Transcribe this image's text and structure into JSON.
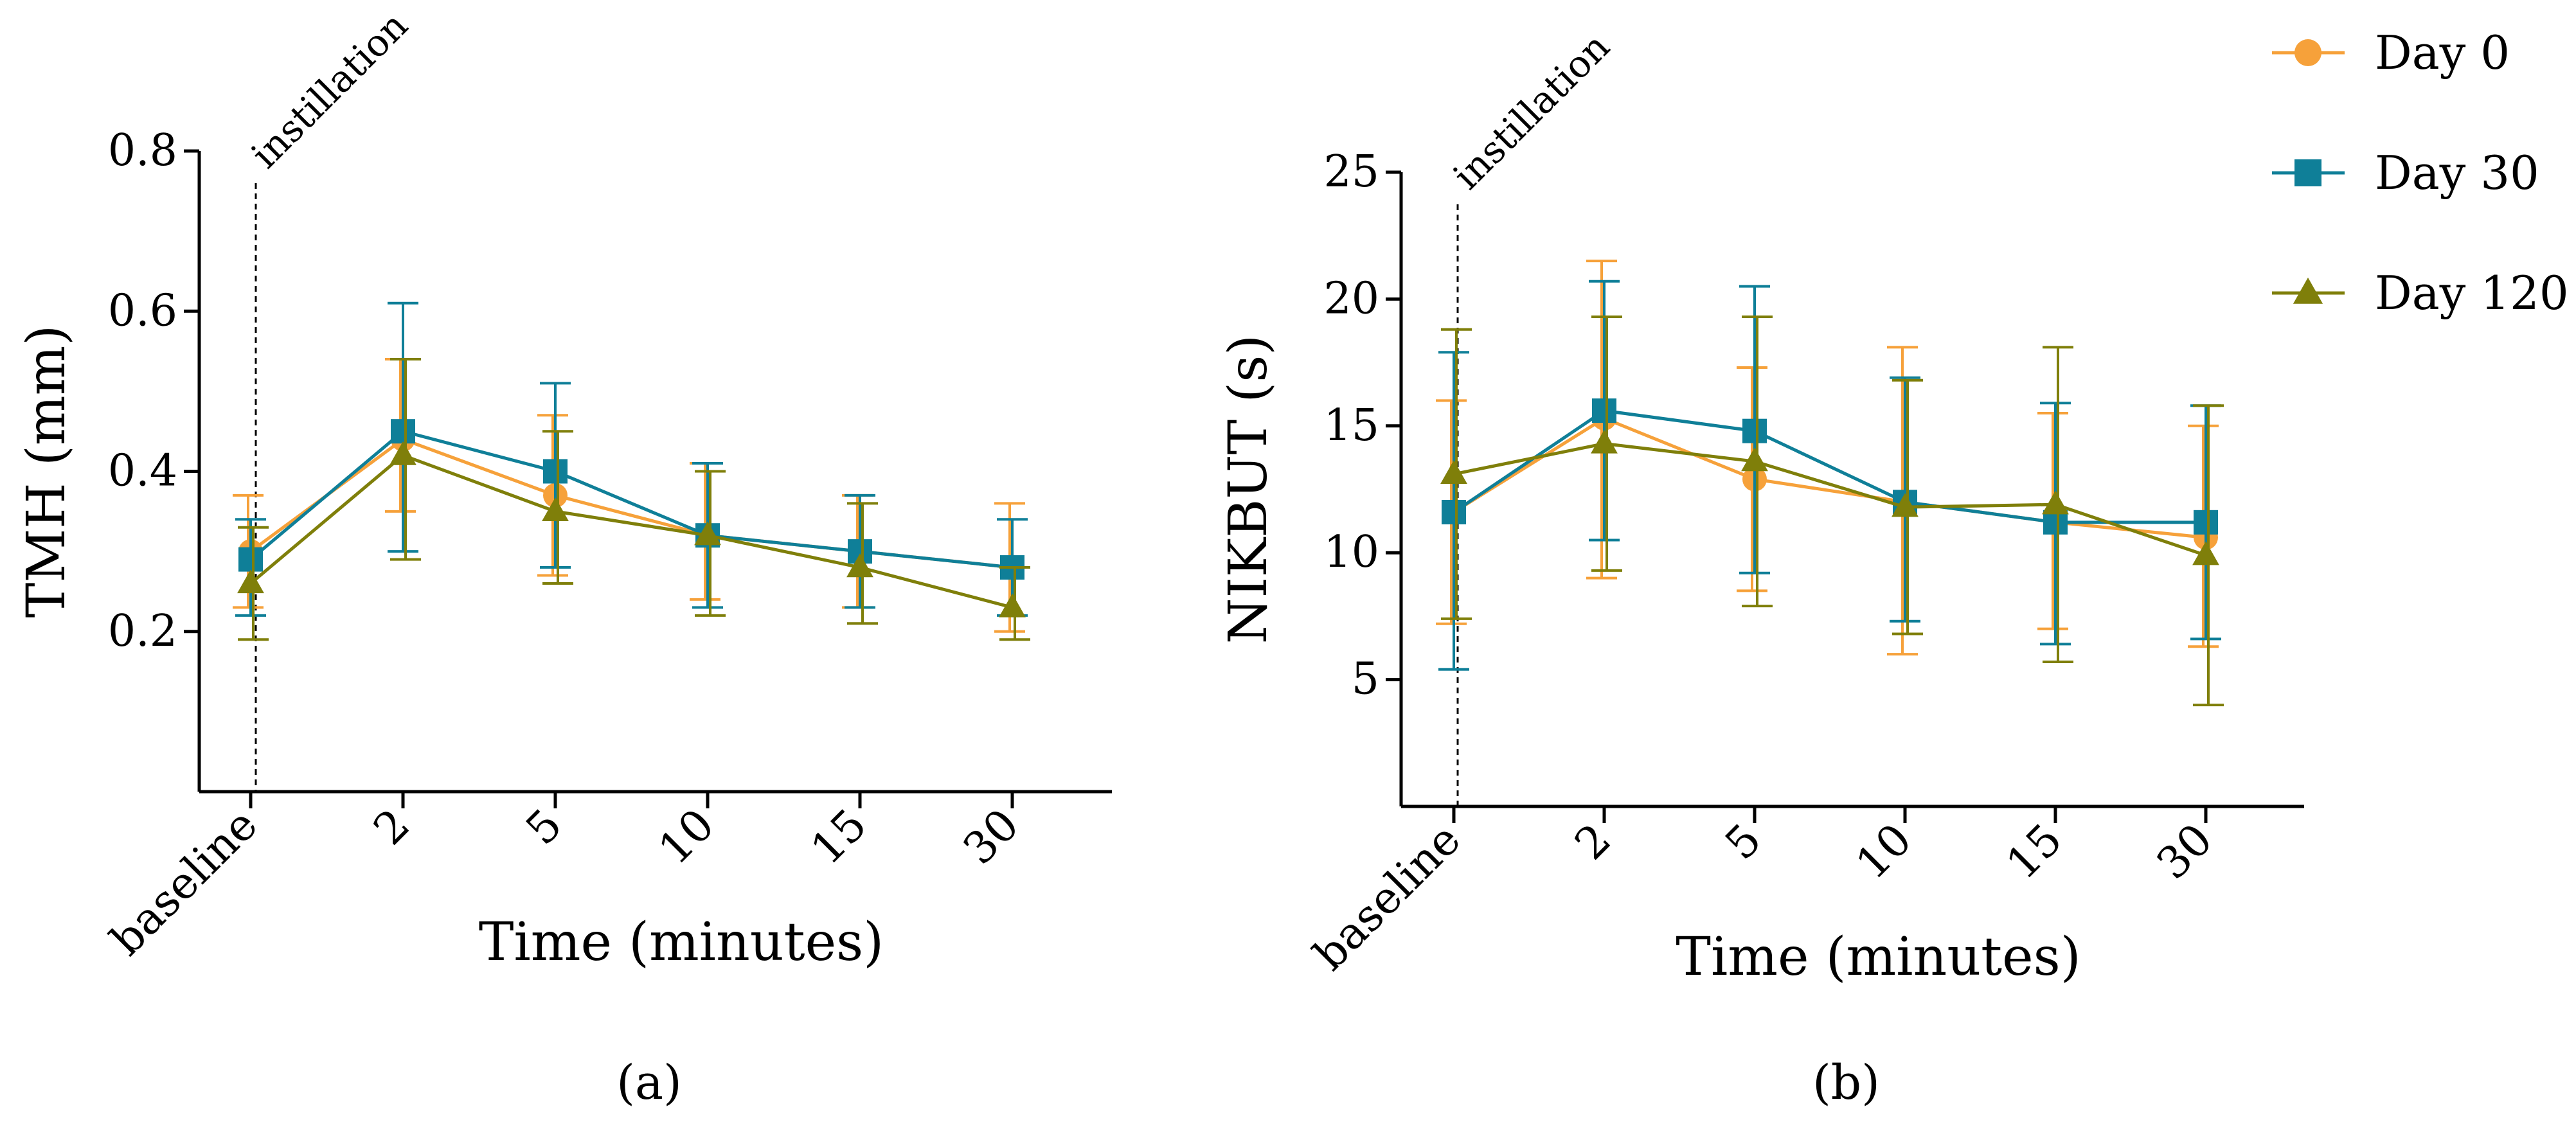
{
  "colors": {
    "day0": "#F6A13A",
    "day30": "#0F7F98",
    "day120": "#7F7F0A",
    "axis": "#000000"
  },
  "legend": {
    "placement": "right",
    "entries": [
      {
        "label": "Day 0",
        "marker": "circle",
        "color": "#F6A13A"
      },
      {
        "label": "Day 30",
        "marker": "square",
        "color": "#0F7F98"
      },
      {
        "label": "Day 120",
        "marker": "triangle",
        "color": "#7F7F0A"
      }
    ]
  },
  "chart_data": [
    {
      "type": "line",
      "panel_label": "(a)",
      "panel_letter": "a",
      "xlabel": "Time (minutes)",
      "ylabel": "TMH (mm)",
      "categories": [
        "baseline",
        "2",
        "5",
        "10",
        "15",
        "30"
      ],
      "ylim": [
        0,
        0.8
      ],
      "yticks": [
        0.2,
        0.4,
        0.6,
        0.8
      ],
      "ytick_labels": [
        "0.2",
        "0.4",
        "0.6",
        "0.8"
      ],
      "grid": false,
      "annotation": {
        "text": "instillation",
        "style": "dashed vertical line",
        "at_category": "baseline"
      },
      "series": [
        {
          "name": "Day 0",
          "marker": "circle",
          "color": "#F6A13A",
          "values": [
            0.3,
            0.44,
            0.37,
            0.32,
            0.3,
            0.28
          ],
          "err_low": [
            0.23,
            0.35,
            0.27,
            0.24,
            0.23,
            0.2
          ],
          "err_high": [
            0.37,
            0.54,
            0.47,
            0.41,
            0.37,
            0.36
          ]
        },
        {
          "name": "Day 30",
          "marker": "square",
          "color": "#0F7F98",
          "values": [
            0.29,
            0.45,
            0.4,
            0.32,
            0.3,
            0.28
          ],
          "err_low": [
            0.22,
            0.3,
            0.28,
            0.23,
            0.23,
            0.22
          ],
          "err_high": [
            0.34,
            0.61,
            0.51,
            0.41,
            0.37,
            0.34
          ]
        },
        {
          "name": "Day 120",
          "marker": "triangle",
          "color": "#7F7F0A",
          "values": [
            0.26,
            0.42,
            0.35,
            0.32,
            0.28,
            0.23
          ],
          "err_low": [
            0.19,
            0.29,
            0.26,
            0.22,
            0.21,
            0.19
          ],
          "err_high": [
            0.33,
            0.54,
            0.45,
            0.4,
            0.36,
            0.28
          ]
        }
      ]
    },
    {
      "type": "line",
      "panel_label": "(b)",
      "panel_letter": "b",
      "xlabel": "Time (minutes)",
      "ylabel": "NIKBUT (s)",
      "categories": [
        "baseline",
        "2",
        "5",
        "10",
        "15",
        "30"
      ],
      "ylim": [
        0,
        25
      ],
      "yticks": [
        5,
        10,
        15,
        20,
        25
      ],
      "ytick_labels": [
        "5",
        "10",
        "15",
        "20",
        "25"
      ],
      "grid": false,
      "annotation": {
        "text": "instillation",
        "style": "dashed vertical line",
        "at_category": "baseline"
      },
      "series": [
        {
          "name": "Day 0",
          "marker": "circle",
          "color": "#F6A13A",
          "values": [
            11.6,
            15.3,
            12.9,
            12.0,
            11.2,
            10.6
          ],
          "err_low": [
            7.2,
            9.0,
            8.5,
            6.0,
            7.0,
            6.3
          ],
          "err_high": [
            16.0,
            21.5,
            17.3,
            18.1,
            15.5,
            15.0
          ]
        },
        {
          "name": "Day 30",
          "marker": "square",
          "color": "#0F7F98",
          "values": [
            11.6,
            15.6,
            14.8,
            12.0,
            11.2,
            11.2
          ],
          "err_low": [
            5.4,
            10.5,
            9.2,
            7.3,
            6.4,
            6.6
          ],
          "err_high": [
            17.9,
            20.7,
            20.5,
            16.9,
            15.9,
            15.8
          ]
        },
        {
          "name": "Day 120",
          "marker": "triangle",
          "color": "#7F7F0A",
          "values": [
            13.1,
            14.3,
            13.6,
            11.8,
            11.9,
            9.9
          ],
          "err_low": [
            7.4,
            9.3,
            7.9,
            6.8,
            5.7,
            4.0
          ],
          "err_high": [
            18.8,
            19.3,
            19.3,
            16.8,
            18.1,
            15.8
          ]
        }
      ]
    }
  ]
}
